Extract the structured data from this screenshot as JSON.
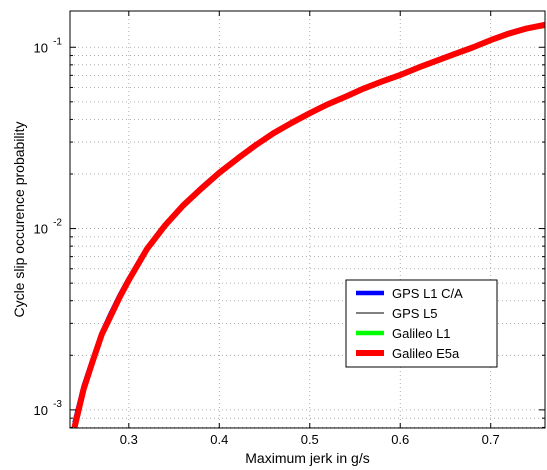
{
  "chart_data": {
    "type": "line",
    "title": "",
    "xlabel": "Maximum jerk in g/s",
    "ylabel": "Cycle slip occurence probability",
    "xlim": [
      0.235,
      0.76
    ],
    "ylim_log10": [
      -3.1,
      -0.8
    ],
    "yscale": "log",
    "grid": "dotted major and minor",
    "legend_position": "bottom-right",
    "x_ticks": [
      0.3,
      0.4,
      0.5,
      0.6,
      0.7
    ],
    "x_tick_labels": [
      "0.3",
      "0.4",
      "0.5",
      "0.6",
      "0.7"
    ],
    "y_ticks": [
      0.001,
      0.01,
      0.1
    ],
    "y_tick_labels": [
      {
        "base": "10",
        "exp": "-3"
      },
      {
        "base": "10",
        "exp": "-2"
      },
      {
        "base": "10",
        "exp": "-1"
      }
    ],
    "x": [
      0.24,
      0.25,
      0.26,
      0.27,
      0.28,
      0.29,
      0.3,
      0.32,
      0.34,
      0.36,
      0.38,
      0.4,
      0.42,
      0.44,
      0.46,
      0.48,
      0.5,
      0.52,
      0.54,
      0.56,
      0.58,
      0.6,
      0.62,
      0.64,
      0.66,
      0.68,
      0.7,
      0.72,
      0.74,
      0.76
    ],
    "series": [
      {
        "name": "GPS L1 C/A",
        "color": "#0000ff",
        "width": 4.5,
        "values": [
          0.00085,
          0.00135,
          0.0019,
          0.00265,
          0.0034,
          0.0043,
          0.0053,
          0.0078,
          0.0105,
          0.0135,
          0.0168,
          0.0205,
          0.0245,
          0.029,
          0.0338,
          0.0385,
          0.0435,
          0.0487,
          0.0537,
          0.0595,
          0.065,
          0.0705,
          0.0775,
          0.0845,
          0.092,
          0.1,
          0.11,
          0.12,
          0.128,
          0.132
        ]
      },
      {
        "name": "GPS L5",
        "color": "#000000",
        "width": 1,
        "values": [
          0.00085,
          0.00135,
          0.0019,
          0.00265,
          0.0034,
          0.0043,
          0.0053,
          0.0078,
          0.0105,
          0.0135,
          0.0168,
          0.0205,
          0.0245,
          0.029,
          0.0338,
          0.0385,
          0.0435,
          0.0487,
          0.0537,
          0.0595,
          0.065,
          0.0705,
          0.0775,
          0.0845,
          0.092,
          0.1,
          0.11,
          0.12,
          0.128,
          0.132
        ]
      },
      {
        "name": "Galileo L1",
        "color": "#00ff00",
        "width": 4.5,
        "values": [
          0.00083,
          0.00132,
          0.00187,
          0.0026,
          0.00335,
          0.00425,
          0.0052,
          0.0077,
          0.0104,
          0.0134,
          0.0166,
          0.0203,
          0.0243,
          0.0288,
          0.0336,
          0.0383,
          0.0433,
          0.0485,
          0.0535,
          0.0593,
          0.0648,
          0.0703,
          0.0772,
          0.0842,
          0.0917,
          0.0997,
          0.1095,
          0.119,
          0.127,
          0.131
        ]
      },
      {
        "name": "Galileo E5a",
        "color": "#ff0000",
        "width": 6,
        "values": [
          0.0008,
          0.0013,
          0.00185,
          0.0026,
          0.0033,
          0.0042,
          0.0052,
          0.0077,
          0.0104,
          0.0134,
          0.0166,
          0.0203,
          0.0243,
          0.0288,
          0.0336,
          0.0383,
          0.0433,
          0.0485,
          0.0535,
          0.0593,
          0.0648,
          0.0703,
          0.0772,
          0.0842,
          0.0917,
          0.0997,
          0.1095,
          0.119,
          0.127,
          0.133
        ]
      }
    ]
  }
}
